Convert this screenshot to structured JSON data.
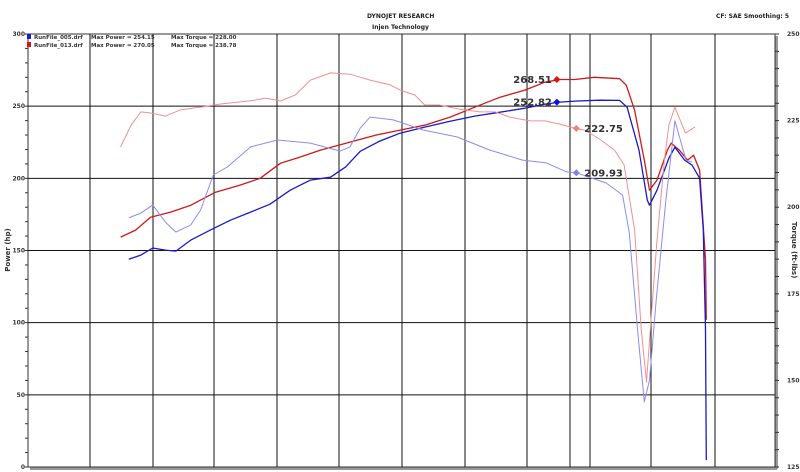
{
  "header": {
    "title": "DYNOJET RESEARCH",
    "subtitle": "Injen Technology",
    "settings": "CF: SAE  Smoothing: 5"
  },
  "chart_data": {
    "type": "line",
    "title": "DYNOJET RESEARCH",
    "subtitle": "Injen Technology",
    "xlabel": "",
    "xlim": [
      0,
      100
    ],
    "ylabel": "Power (hp)",
    "ylim": [
      0,
      300
    ],
    "yticks": [
      "0",
      "50",
      "100",
      "150",
      "200",
      "250",
      "300"
    ],
    "y2label": "Torque (ft-lbs)",
    "y2lim": [
      125,
      250
    ],
    "y2ticks": [
      "125",
      "150",
      "175",
      "200",
      "225",
      "250"
    ],
    "grid": true,
    "legend_position": "top-left",
    "legend": [
      {
        "file": "RunFile_005.drf",
        "power": "Max Power = 254.15",
        "torque": "Max Torque = 228.00",
        "color": "#1a1ad0"
      },
      {
        "file": "RunFile_013.drf",
        "power": "Max Power = 270.05",
        "torque": "Max Torque = 238.78",
        "color": "#e01010"
      }
    ],
    "series": [
      {
        "id": "power_013",
        "axis": "left",
        "color": "#cc1a1a",
        "width": 1.3,
        "points": [
          [
            12.4,
            159.3
          ],
          [
            14.4,
            164.1
          ],
          [
            16.4,
            173.1
          ],
          [
            19.1,
            176.6
          ],
          [
            21.8,
            181.4
          ],
          [
            25.1,
            190.4
          ],
          [
            28.4,
            195.3
          ],
          [
            31.1,
            200.1
          ],
          [
            33.8,
            210.5
          ],
          [
            36.4,
            214.7
          ],
          [
            39.1,
            219.5
          ],
          [
            43.1,
            225.1
          ],
          [
            46.5,
            229.9
          ],
          [
            49.8,
            233.4
          ],
          [
            53.1,
            236.8
          ],
          [
            56.5,
            242.4
          ],
          [
            59.8,
            249.3
          ],
          [
            63.2,
            256.2
          ],
          [
            66.5,
            261.1
          ],
          [
            69.2,
            266.6
          ],
          [
            71.2,
            268.5
          ],
          [
            73.2,
            268.5
          ],
          [
            75.8,
            270.0
          ],
          [
            79.2,
            269.0
          ],
          [
            80.1,
            264.5
          ],
          [
            81.2,
            247.2
          ],
          [
            82.5,
            212.6
          ],
          [
            83.2,
            191.8
          ],
          [
            84.2,
            198.8
          ],
          [
            85.6,
            219.5
          ],
          [
            86.1,
            224.4
          ],
          [
            87.2,
            219.5
          ],
          [
            88.3,
            212.6
          ],
          [
            89.1,
            216.0
          ],
          [
            89.9,
            205.7
          ],
          [
            90.7,
            143.4
          ],
          [
            90.8,
            101.9
          ]
        ]
      },
      {
        "id": "power_005",
        "axis": "left",
        "color": "#1a1ac8",
        "width": 1.3,
        "points": [
          [
            13.5,
            144.0
          ],
          [
            15.1,
            146.8
          ],
          [
            16.7,
            151.7
          ],
          [
            18.4,
            150.3
          ],
          [
            19.8,
            149.6
          ],
          [
            21.8,
            157.2
          ],
          [
            24.4,
            164.1
          ],
          [
            27.1,
            171.0
          ],
          [
            29.8,
            176.6
          ],
          [
            32.4,
            182.1
          ],
          [
            35.1,
            191.8
          ],
          [
            37.8,
            198.8
          ],
          [
            40.5,
            200.8
          ],
          [
            42.5,
            207.8
          ],
          [
            44.5,
            218.8
          ],
          [
            47.1,
            225.8
          ],
          [
            49.8,
            231.3
          ],
          [
            53.1,
            235.5
          ],
          [
            56.5,
            239.6
          ],
          [
            59.8,
            243.1
          ],
          [
            63.2,
            245.8
          ],
          [
            66.5,
            248.6
          ],
          [
            69.2,
            251.4
          ],
          [
            71.2,
            252.8
          ],
          [
            73.2,
            253.5
          ],
          [
            76.5,
            254.15
          ],
          [
            79.2,
            254.0
          ],
          [
            80.2,
            249.3
          ],
          [
            81.8,
            219.5
          ],
          [
            82.9,
            184.9
          ],
          [
            83.2,
            181.4
          ],
          [
            84.2,
            191.8
          ],
          [
            85.8,
            214.0
          ],
          [
            86.6,
            221.6
          ],
          [
            87.9,
            212.6
          ],
          [
            88.9,
            209.1
          ],
          [
            89.9,
            200.1
          ],
          [
            90.4,
            164.1
          ],
          [
            90.7,
            94.9
          ],
          [
            90.8,
            4.8
          ]
        ]
      },
      {
        "id": "torque_013",
        "axis": "right",
        "color": "#f29090",
        "width": 1,
        "points": [
          [
            12.4,
            217.4
          ],
          [
            13.8,
            223.7
          ],
          [
            15.1,
            227.5
          ],
          [
            16.4,
            227.2
          ],
          [
            18.4,
            226.3
          ],
          [
            20.4,
            228.1
          ],
          [
            23.1,
            228.9
          ],
          [
            25.8,
            229.8
          ],
          [
            28.4,
            230.4
          ],
          [
            29.8,
            230.7
          ],
          [
            31.8,
            231.5
          ],
          [
            33.8,
            230.7
          ],
          [
            35.8,
            232.4
          ],
          [
            37.8,
            236.7
          ],
          [
            40.5,
            238.76
          ],
          [
            43.1,
            238.4
          ],
          [
            45.8,
            236.7
          ],
          [
            48.5,
            235.3
          ],
          [
            49.8,
            233.8
          ],
          [
            51.8,
            232.4
          ],
          [
            53.1,
            229.5
          ],
          [
            55.1,
            229.5
          ],
          [
            57.8,
            228.3
          ],
          [
            60.5,
            227.5
          ],
          [
            62.5,
            227.5
          ],
          [
            64.5,
            226.0
          ],
          [
            67.2,
            224.9
          ],
          [
            69.2,
            224.9
          ],
          [
            71.2,
            224.0
          ],
          [
            73.2,
            222.75
          ],
          [
            74.5,
            222.3
          ],
          [
            76.5,
            219.7
          ],
          [
            78.5,
            216.5
          ],
          [
            79.8,
            212.2
          ],
          [
            81.2,
            193.4
          ],
          [
            82.1,
            164.5
          ],
          [
            82.8,
            149.5
          ],
          [
            83.4,
            167.4
          ],
          [
            84.2,
            190.5
          ],
          [
            85.2,
            213.6
          ],
          [
            85.8,
            223.7
          ],
          [
            86.6,
            228.9
          ],
          [
            88.0,
            221.4
          ],
          [
            89.3,
            223.2
          ]
        ]
      },
      {
        "id": "torque_005",
        "axis": "right",
        "color": "#8c8cf0",
        "width": 1,
        "points": [
          [
            13.5,
            196.9
          ],
          [
            15.1,
            198.3
          ],
          [
            16.7,
            200.6
          ],
          [
            18.4,
            195.7
          ],
          [
            19.8,
            192.8
          ],
          [
            21.8,
            194.9
          ],
          [
            23.1,
            199.2
          ],
          [
            24.8,
            209.3
          ],
          [
            26.7,
            211.6
          ],
          [
            29.8,
            217.4
          ],
          [
            33.4,
            219.4
          ],
          [
            37.8,
            218.5
          ],
          [
            41.8,
            216.2
          ],
          [
            43.1,
            217.4
          ],
          [
            44.5,
            222.9
          ],
          [
            45.8,
            226.0
          ],
          [
            48.9,
            225.2
          ],
          [
            52.9,
            222.3
          ],
          [
            57.4,
            220.3
          ],
          [
            61.8,
            216.5
          ],
          [
            66.2,
            213.6
          ],
          [
            69.4,
            212.8
          ],
          [
            72.1,
            210.2
          ],
          [
            73.4,
            209.93
          ],
          [
            77.4,
            207.0
          ],
          [
            79.6,
            203.5
          ],
          [
            80.5,
            192.6
          ],
          [
            81.6,
            164.5
          ],
          [
            82.5,
            143.8
          ],
          [
            83.2,
            150.1
          ],
          [
            84.1,
            173.2
          ],
          [
            85.4,
            202.1
          ],
          [
            86.6,
            224.9
          ],
          [
            88.1,
            213.6
          ],
          [
            88.9,
            213.0
          ]
        ]
      }
    ],
    "annotations": [
      {
        "series": "power_013",
        "x": 70.8,
        "y": 268.51,
        "label": "268.51",
        "side": "left",
        "color": "#e01010"
      },
      {
        "series": "power_005",
        "x": 70.8,
        "y": 252.82,
        "label": "252.82",
        "side": "left",
        "color": "#1010e0"
      },
      {
        "series": "torque_013",
        "x": 73.4,
        "y": 222.75,
        "label": "222.75",
        "side": "right",
        "color": "#f08080"
      },
      {
        "series": "torque_005",
        "x": 73.4,
        "y": 209.93,
        "label": "209.93",
        "side": "right",
        "color": "#8080f0"
      }
    ]
  }
}
